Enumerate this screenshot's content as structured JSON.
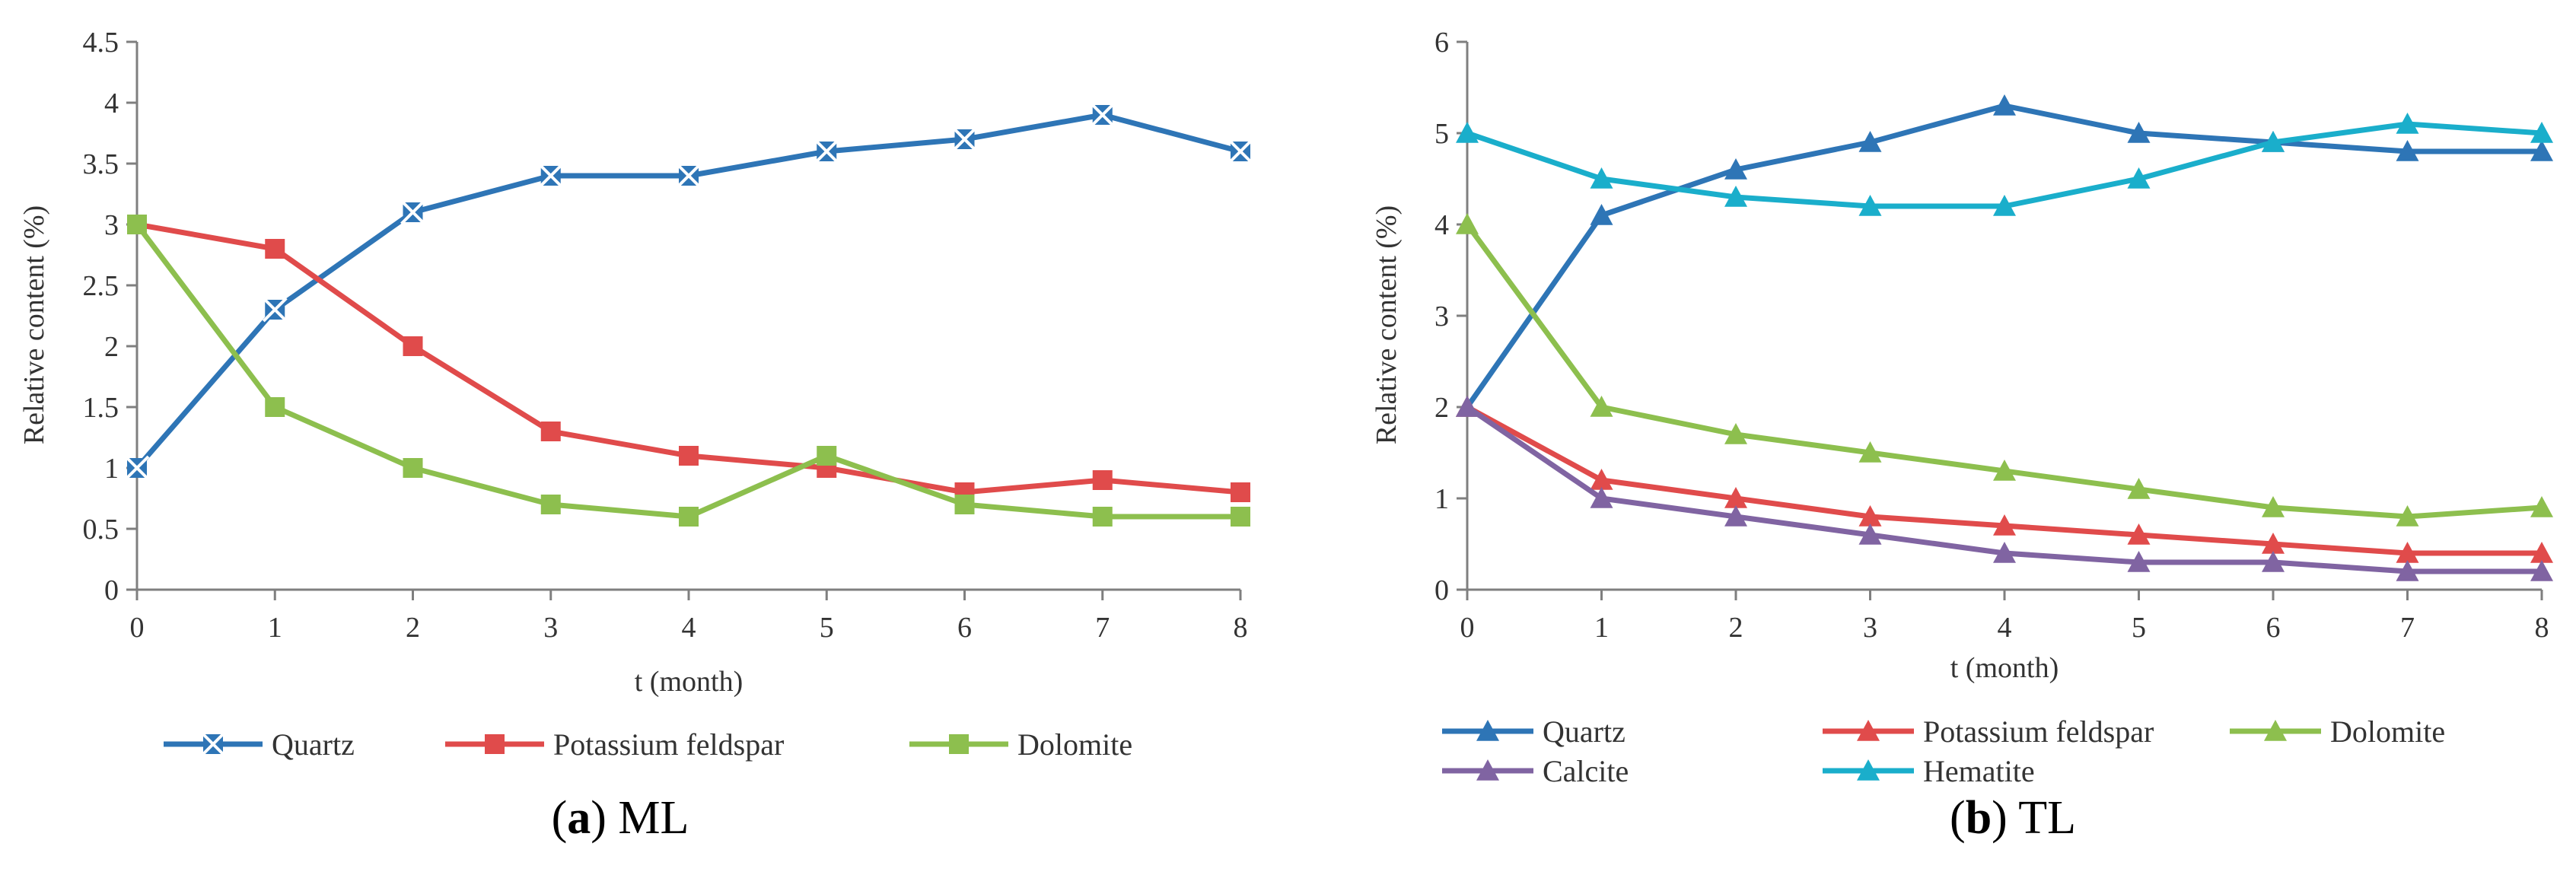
{
  "chart_data": [
    {
      "type": "line",
      "panel": "(a)",
      "caption_label": "a",
      "caption_text": " ML",
      "xlabel": "t (month)",
      "ylabel": "Relative content (%)",
      "x": [
        0,
        1,
        2,
        3,
        4,
        5,
        6,
        7,
        8
      ],
      "xticks": [
        "0",
        "1",
        "2",
        "3",
        "4",
        "5",
        "6",
        "7",
        "8"
      ],
      "ylim": [
        0,
        4.5
      ],
      "yticks": [
        "0",
        "0.5",
        "1",
        "1.5",
        "2",
        "2.5",
        "3",
        "3.5",
        "4",
        "4.5"
      ],
      "grid": false,
      "legend_position": "bottom",
      "series": [
        {
          "name": "Quartz",
          "color": "#2E75B6",
          "marker": "star-square",
          "values": [
            1.0,
            2.3,
            3.1,
            3.4,
            3.4,
            3.6,
            3.7,
            3.9,
            3.6
          ]
        },
        {
          "name": "Potassium feldspar",
          "color": "#E04B4B",
          "marker": "square",
          "values": [
            3.0,
            2.8,
            2.0,
            1.3,
            1.1,
            1.0,
            0.8,
            0.9,
            0.8
          ]
        },
        {
          "name": "Dolomite",
          "color": "#8DBF4E",
          "marker": "square",
          "values": [
            3.0,
            1.5,
            1.0,
            0.7,
            0.6,
            1.1,
            0.7,
            0.6,
            0.6
          ]
        }
      ]
    },
    {
      "type": "line",
      "panel": "(b)",
      "caption_label": "b",
      "caption_text": " TL",
      "xlabel": "t (month)",
      "ylabel": "Relative content (%)",
      "x": [
        0,
        1,
        2,
        3,
        4,
        5,
        6,
        7,
        8
      ],
      "xticks": [
        "0",
        "1",
        "2",
        "3",
        "4",
        "5",
        "6",
        "7",
        "8"
      ],
      "ylim": [
        0,
        6
      ],
      "yticks": [
        "0",
        "1",
        "2",
        "3",
        "4",
        "5",
        "6"
      ],
      "grid": false,
      "legend_position": "bottom",
      "series": [
        {
          "name": "Quartz",
          "color": "#2E75B6",
          "marker": "triangle",
          "values": [
            2.0,
            4.1,
            4.6,
            4.9,
            5.3,
            5.0,
            4.9,
            4.8,
            4.8
          ]
        },
        {
          "name": "Potassium feldspar",
          "color": "#E04B4B",
          "marker": "triangle",
          "values": [
            2.0,
            1.2,
            1.0,
            0.8,
            0.7,
            0.6,
            0.5,
            0.4,
            0.4
          ]
        },
        {
          "name": "Dolomite",
          "color": "#8DBF4E",
          "marker": "triangle",
          "values": [
            4.0,
            2.0,
            1.7,
            1.5,
            1.3,
            1.1,
            0.9,
            0.8,
            0.9
          ]
        },
        {
          "name": "Calcite",
          "color": "#8064A2",
          "marker": "triangle",
          "values": [
            2.0,
            1.0,
            0.8,
            0.6,
            0.4,
            0.3,
            0.3,
            0.2,
            0.2
          ]
        },
        {
          "name": "Hematite",
          "color": "#1AAECB",
          "marker": "triangle",
          "values": [
            5.0,
            4.5,
            4.3,
            4.2,
            4.2,
            4.5,
            4.9,
            5.1,
            5.0
          ]
        }
      ]
    }
  ]
}
